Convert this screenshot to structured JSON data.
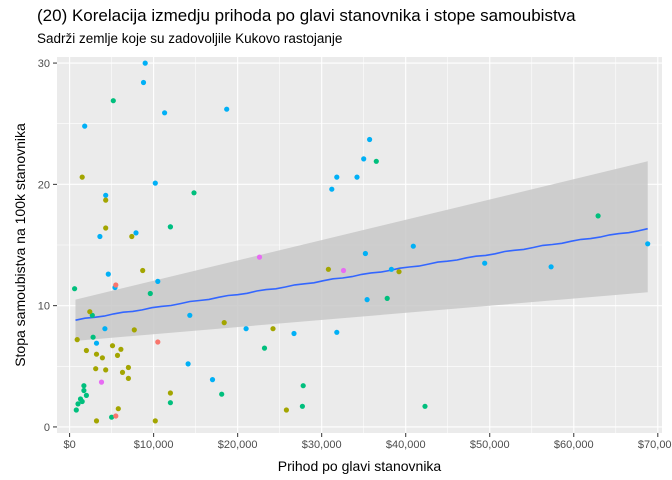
{
  "chart_data": {
    "type": "scatter",
    "title": "(20) Korelacija izmedju prihoda po glavi stanovnika i stope samoubistva",
    "subtitle": "Sadrži zemlje koje su zadovoljile Kukovo rastojanje",
    "xlabel": "Prihod po glavi stanovnika",
    "ylabel": "Stopa samoubistva na 100k stanovnika",
    "xlim": [
      -1500,
      70500
    ],
    "ylim": [
      -0.5,
      30.5
    ],
    "x_ticks": [
      0,
      10000,
      20000,
      30000,
      40000,
      50000,
      60000,
      70000
    ],
    "x_tick_labels": [
      "$0",
      "$10,000",
      "$20,000",
      "$30,000",
      "$40,000",
      "$50,000",
      "$60,000",
      "$70,000"
    ],
    "y_ticks": [
      0,
      10,
      20,
      30
    ],
    "y_tick_labels": [
      "0",
      "10",
      "20",
      "30"
    ],
    "grid": true,
    "legend": "none",
    "colors": {
      "panel_bg": "#ebebeb",
      "grid": "#ffffff",
      "ribbon": "#c8c8c8",
      "trend_line": "#3366ff",
      "salmon": "#f8766d",
      "olive": "#a3a500",
      "green": "#00bf7d",
      "blue": "#00b0f6",
      "pink": "#e76bf3"
    },
    "trend": {
      "x": [
        700,
        68800
      ],
      "y": [
        8.8,
        16.3
      ],
      "ci_lower": [
        7.1,
        11.1
      ],
      "ci_upper": [
        10.5,
        21.9
      ]
    },
    "points": [
      {
        "x": 1800,
        "y": 24.8,
        "c": "blue"
      },
      {
        "x": 9000,
        "y": 30.0,
        "c": "blue"
      },
      {
        "x": 8800,
        "y": 28.4,
        "c": "blue"
      },
      {
        "x": 11300,
        "y": 25.9,
        "c": "blue"
      },
      {
        "x": 18700,
        "y": 26.2,
        "c": "blue"
      },
      {
        "x": 10200,
        "y": 20.1,
        "c": "blue"
      },
      {
        "x": 4300,
        "y": 19.1,
        "c": "blue"
      },
      {
        "x": 7900,
        "y": 16.0,
        "c": "blue"
      },
      {
        "x": 12000,
        "y": 16.5,
        "c": "blue"
      },
      {
        "x": 3600,
        "y": 15.7,
        "c": "blue"
      },
      {
        "x": 4600,
        "y": 12.6,
        "c": "blue"
      },
      {
        "x": 10500,
        "y": 12.0,
        "c": "blue"
      },
      {
        "x": 35700,
        "y": 23.7,
        "c": "blue"
      },
      {
        "x": 31800,
        "y": 20.6,
        "c": "blue"
      },
      {
        "x": 31200,
        "y": 19.6,
        "c": "blue"
      },
      {
        "x": 34200,
        "y": 20.6,
        "c": "blue"
      },
      {
        "x": 35000,
        "y": 22.1,
        "c": "blue"
      },
      {
        "x": 35200,
        "y": 14.3,
        "c": "blue"
      },
      {
        "x": 40900,
        "y": 14.9,
        "c": "blue"
      },
      {
        "x": 49400,
        "y": 13.5,
        "c": "blue"
      },
      {
        "x": 57300,
        "y": 13.2,
        "c": "blue"
      },
      {
        "x": 68800,
        "y": 15.1,
        "c": "blue"
      },
      {
        "x": 35400,
        "y": 10.5,
        "c": "blue"
      },
      {
        "x": 38300,
        "y": 13.0,
        "c": "blue"
      },
      {
        "x": 31800,
        "y": 7.8,
        "c": "blue"
      },
      {
        "x": 26700,
        "y": 7.7,
        "c": "blue"
      },
      {
        "x": 21000,
        "y": 8.1,
        "c": "blue"
      },
      {
        "x": 14300,
        "y": 9.2,
        "c": "blue"
      },
      {
        "x": 14100,
        "y": 5.2,
        "c": "blue"
      },
      {
        "x": 17000,
        "y": 3.9,
        "c": "blue"
      },
      {
        "x": 4200,
        "y": 8.1,
        "c": "blue"
      },
      {
        "x": 3200,
        "y": 6.9,
        "c": "blue"
      },
      {
        "x": 5400,
        "y": 11.5,
        "c": "blue"
      },
      {
        "x": 5200,
        "y": 26.9,
        "c": "green"
      },
      {
        "x": 14800,
        "y": 19.3,
        "c": "green"
      },
      {
        "x": 12000,
        "y": 16.5,
        "c": "green"
      },
      {
        "x": 36500,
        "y": 21.9,
        "c": "green"
      },
      {
        "x": 62900,
        "y": 17.4,
        "c": "green"
      },
      {
        "x": 600,
        "y": 11.4,
        "c": "green"
      },
      {
        "x": 9600,
        "y": 11.0,
        "c": "green"
      },
      {
        "x": 37800,
        "y": 10.6,
        "c": "green"
      },
      {
        "x": 2700,
        "y": 9.2,
        "c": "green"
      },
      {
        "x": 2800,
        "y": 7.4,
        "c": "green"
      },
      {
        "x": 23200,
        "y": 6.5,
        "c": "green"
      },
      {
        "x": 1300,
        "y": 2.3,
        "c": "green"
      },
      {
        "x": 1700,
        "y": 3.4,
        "c": "green"
      },
      {
        "x": 1700,
        "y": 3.0,
        "c": "green"
      },
      {
        "x": 2000,
        "y": 2.6,
        "c": "green"
      },
      {
        "x": 1500,
        "y": 2.1,
        "c": "green"
      },
      {
        "x": 1000,
        "y": 1.9,
        "c": "green"
      },
      {
        "x": 800,
        "y": 1.4,
        "c": "green"
      },
      {
        "x": 5000,
        "y": 0.8,
        "c": "green"
      },
      {
        "x": 12000,
        "y": 2.0,
        "c": "green"
      },
      {
        "x": 18100,
        "y": 2.7,
        "c": "green"
      },
      {
        "x": 27800,
        "y": 3.4,
        "c": "green"
      },
      {
        "x": 27700,
        "y": 1.7,
        "c": "green"
      },
      {
        "x": 42300,
        "y": 1.7,
        "c": "green"
      },
      {
        "x": 1500,
        "y": 20.6,
        "c": "olive"
      },
      {
        "x": 4300,
        "y": 18.7,
        "c": "olive"
      },
      {
        "x": 4300,
        "y": 16.4,
        "c": "olive"
      },
      {
        "x": 7400,
        "y": 15.7,
        "c": "olive"
      },
      {
        "x": 8700,
        "y": 12.9,
        "c": "olive"
      },
      {
        "x": 30800,
        "y": 13.0,
        "c": "olive"
      },
      {
        "x": 39200,
        "y": 12.8,
        "c": "olive"
      },
      {
        "x": 2400,
        "y": 9.5,
        "c": "olive"
      },
      {
        "x": 900,
        "y": 7.2,
        "c": "olive"
      },
      {
        "x": 7700,
        "y": 8.0,
        "c": "olive"
      },
      {
        "x": 18400,
        "y": 8.6,
        "c": "olive"
      },
      {
        "x": 24200,
        "y": 8.1,
        "c": "olive"
      },
      {
        "x": 2000,
        "y": 6.3,
        "c": "olive"
      },
      {
        "x": 3200,
        "y": 6.0,
        "c": "olive"
      },
      {
        "x": 3900,
        "y": 5.7,
        "c": "olive"
      },
      {
        "x": 5100,
        "y": 6.7,
        "c": "olive"
      },
      {
        "x": 6100,
        "y": 6.4,
        "c": "olive"
      },
      {
        "x": 5700,
        "y": 5.9,
        "c": "olive"
      },
      {
        "x": 3100,
        "y": 4.8,
        "c": "olive"
      },
      {
        "x": 4300,
        "y": 4.7,
        "c": "olive"
      },
      {
        "x": 6300,
        "y": 4.5,
        "c": "olive"
      },
      {
        "x": 7000,
        "y": 4.9,
        "c": "olive"
      },
      {
        "x": 7000,
        "y": 4.0,
        "c": "olive"
      },
      {
        "x": 12000,
        "y": 2.8,
        "c": "olive"
      },
      {
        "x": 5800,
        "y": 1.5,
        "c": "olive"
      },
      {
        "x": 3200,
        "y": 0.5,
        "c": "olive"
      },
      {
        "x": 10200,
        "y": 0.5,
        "c": "olive"
      },
      {
        "x": 25800,
        "y": 1.4,
        "c": "olive"
      },
      {
        "x": 5500,
        "y": 11.7,
        "c": "salmon"
      },
      {
        "x": 10500,
        "y": 7.0,
        "c": "salmon"
      },
      {
        "x": 5500,
        "y": 0.9,
        "c": "salmon"
      },
      {
        "x": 22600,
        "y": 14.0,
        "c": "pink"
      },
      {
        "x": 32600,
        "y": 12.9,
        "c": "pink"
      },
      {
        "x": 3800,
        "y": 3.7,
        "c": "pink"
      }
    ]
  }
}
